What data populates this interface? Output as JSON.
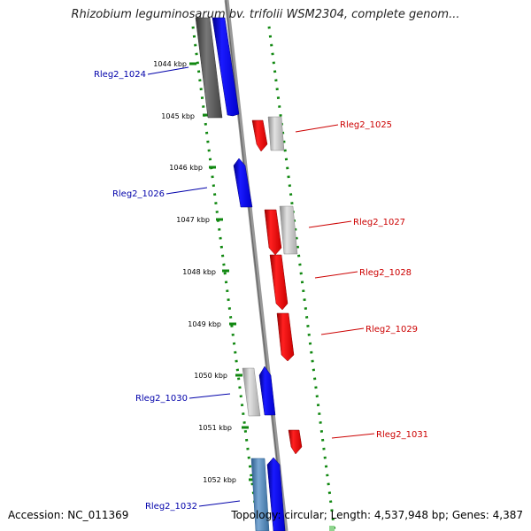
{
  "title": "Rhizobium leguminosarum bv. trifolii WSM2304, complete genom...",
  "accession_text": "Accession: NC_011369",
  "topology_text": "Topology: circular; Length: 4,537,948 bp; Genes: 4,387",
  "ticks": [
    "1044 kbp",
    "1045 kbp",
    "1046 kbp",
    "1047 kbp",
    "1048 kbp",
    "1049 kbp",
    "1050 kbp",
    "1051 kbp",
    "1052 kbp"
  ],
  "colors": {
    "forward_gene": "#0000ee",
    "reverse_gene": "#ee0000",
    "gray_feature": "#bbbbbb",
    "dark_feature": "#555555",
    "light_blue_feature": "#4a7fb0",
    "backbone": "#888888",
    "gc_dots": "#118811",
    "forward_label": "#0000aa",
    "reverse_label": "#cc0000"
  },
  "labels": [
    {
      "text": "Rleg2_1024",
      "strand": "forward"
    },
    {
      "text": "Rleg2_1025",
      "strand": "reverse"
    },
    {
      "text": "Rleg2_1026",
      "strand": "forward"
    },
    {
      "text": "Rleg2_1027",
      "strand": "reverse"
    },
    {
      "text": "Rleg2_1028",
      "strand": "reverse"
    },
    {
      "text": "Rleg2_1029",
      "strand": "reverse"
    },
    {
      "text": "Rleg2_1030",
      "strand": "forward"
    },
    {
      "text": "Rleg2_1031",
      "strand": "reverse"
    },
    {
      "text": "Rleg2_1032",
      "strand": "forward"
    }
  ]
}
